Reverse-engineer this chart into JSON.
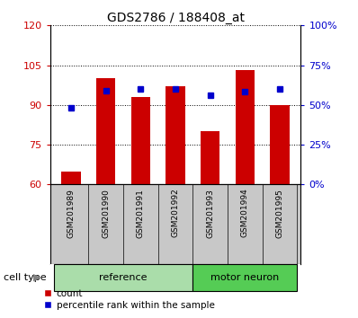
{
  "title": "GDS2786 / 188408_at",
  "samples": [
    "GSM201989",
    "GSM201990",
    "GSM201991",
    "GSM201992",
    "GSM201993",
    "GSM201994",
    "GSM201995"
  ],
  "red_values": [
    65,
    100,
    93,
    97,
    80,
    103,
    90
  ],
  "blue_values": [
    89,
    95.5,
    96,
    96,
    93.5,
    95,
    96
  ],
  "ymin": 60,
  "ymax": 120,
  "yticks": [
    60,
    75,
    90,
    105,
    120
  ],
  "right_yticks": [
    0,
    25,
    50,
    75,
    100
  ],
  "right_yticklabels": [
    "0%",
    "25%",
    "50%",
    "75%",
    "100%"
  ],
  "bar_color": "#cc0000",
  "marker_color": "#0000cc",
  "bar_width": 0.55,
  "group_bg_color": "#90ee90",
  "cell_type_label": "cell type",
  "legend_count": "count",
  "legend_pct": "percentile rank within the sample",
  "tick_color_left": "#cc0000",
  "tick_color_right": "#0000cc",
  "sample_bg_color": "#c8c8c8",
  "ref_group_color": "#aaddaa",
  "mn_group_color": "#55cc55"
}
